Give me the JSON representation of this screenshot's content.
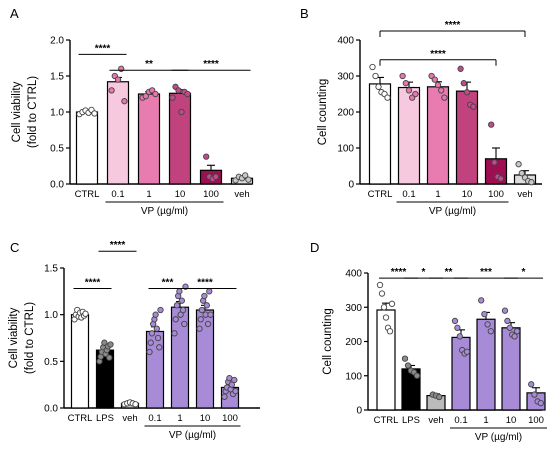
{
  "chart_data": [
    {
      "panel": "A",
      "type": "bar",
      "ylabel": [
        "Cell viability",
        "(fold to CTRL)"
      ],
      "yticks": [
        "0.0",
        "0.5",
        "1.0",
        "1.5",
        "2.0"
      ],
      "ylim": [
        0,
        2.0
      ],
      "categories": [
        "CTRL",
        "0.1",
        "1",
        "10",
        "100",
        "veh"
      ],
      "group_label": "VP (µg/ml)",
      "values": [
        1.0,
        1.42,
        1.25,
        1.26,
        0.19,
        0.08
      ],
      "errors": [
        0.03,
        0.06,
        0.03,
        0.05,
        0.07,
        0.02
      ],
      "points": [
        [
          0.97,
          1.0,
          1.02,
          0.99,
          1.03,
          0.98
        ],
        [
          1.3,
          1.5,
          1.45,
          1.6,
          1.15
        ],
        [
          1.2,
          1.22,
          1.28,
          1.3,
          1.25
        ],
        [
          1.2,
          1.35,
          1.3,
          1.0,
          1.28,
          1.25
        ],
        [
          0.38,
          0.1,
          0.07,
          0.1
        ],
        [
          0.05,
          0.1,
          0.08,
          0.12,
          0.06
        ]
      ],
      "fills": [
        "#ffffff",
        "#f6c9de",
        "#e87cb0",
        "#c0437d",
        "#9e0e52",
        "#dddddd"
      ],
      "dot_fills": [
        "#ffffff",
        "#e877b0",
        "#e877b0",
        "#c14b8b",
        "#c14b8b",
        "#c8c8c8"
      ],
      "significance": [
        {
          "from": 0,
          "to": 1,
          "label": "****",
          "y": 1.8
        },
        {
          "from": 1,
          "to": 3,
          "label": "**",
          "y": 1.58
        },
        {
          "from": 3,
          "to": 5,
          "label": "****",
          "y": 1.58
        }
      ]
    },
    {
      "panel": "B",
      "type": "bar",
      "ylabel": [
        "Cell counting"
      ],
      "yticks": [
        "0",
        "100",
        "200",
        "300",
        "400"
      ],
      "ylim": [
        0,
        400
      ],
      "categories": [
        "CTRL",
        "0.1",
        "1",
        "10",
        "100",
        "veh"
      ],
      "group_label": "VP (µg/ml)",
      "values": [
        278,
        268,
        270,
        258,
        70,
        25
      ],
      "errors": [
        18,
        15,
        14,
        25,
        30,
        12
      ],
      "points": [
        [
          325,
          300,
          270,
          255,
          250,
          240
        ],
        [
          300,
          280,
          260,
          240,
          250
        ],
        [
          300,
          290,
          275,
          260,
          240
        ],
        [
          320,
          280,
          255,
          220,
          215
        ],
        [
          165,
          60,
          20,
          15
        ],
        [
          55,
          30,
          18,
          8,
          5
        ]
      ],
      "fills": [
        "#ffffff",
        "#f6c9de",
        "#e87cb0",
        "#c0437d",
        "#9e0e52",
        "#dddddd"
      ],
      "dot_fills": [
        "#ffffff",
        "#e877b0",
        "#e877b0",
        "#c14b8b",
        "#c14b8b",
        "#c8c8c8"
      ],
      "significance": [
        {
          "from": 0,
          "to": 5,
          "label": "****",
          "y": 425,
          "tick_at": [
            0,
            5
          ]
        },
        {
          "from": 0,
          "to": 4,
          "label": "****",
          "y": 345,
          "tick_at": [
            0,
            4
          ]
        }
      ]
    },
    {
      "panel": "C",
      "type": "bar",
      "ylabel": [
        "Cell viability",
        "(fold to CTRL)"
      ],
      "yticks": [
        "0.0",
        "0.5",
        "1.0",
        "1.5"
      ],
      "ylim": [
        0,
        1.5
      ],
      "categories": [
        "CTRL",
        "LPS",
        "veh",
        "0.1",
        "1",
        "10",
        "100"
      ],
      "group_label": "VP (µg/ml)",
      "group_start": 3,
      "values": [
        1.0,
        0.62,
        0.05,
        0.82,
        1.08,
        1.05,
        0.22
      ],
      "errors": [
        0.02,
        0.03,
        0.01,
        0.05,
        0.06,
        0.05,
        0.03
      ],
      "points": [
        [
          0.95,
          1.0,
          1.05,
          0.98,
          1.02,
          0.97,
          1.03,
          0.99,
          1.01
        ],
        [
          0.5,
          0.55,
          0.6,
          0.65,
          0.7,
          0.58,
          0.62,
          0.66,
          0.54,
          0.68
        ],
        [
          0.04,
          0.05,
          0.06,
          0.05,
          0.04
        ],
        [
          0.6,
          0.7,
          0.8,
          0.9,
          0.95,
          1.0,
          0.85,
          0.75,
          0.65,
          1.05
        ],
        [
          0.8,
          0.95,
          1.1,
          1.2,
          1.25,
          1.0,
          1.15,
          1.05,
          0.9,
          1.3
        ],
        [
          0.85,
          0.95,
          1.05,
          1.15,
          1.2,
          1.0,
          1.1,
          0.9,
          1.25,
          1.0
        ],
        [
          0.12,
          0.18,
          0.22,
          0.28,
          0.32,
          0.2,
          0.25,
          0.15,
          0.3,
          0.18
        ]
      ],
      "fills": [
        "#ffffff",
        "#000000",
        "#cccccc",
        "#a78bd6",
        "#a78bd6",
        "#a78bd6",
        "#a78bd6"
      ],
      "dot_fills": [
        "#ffffff",
        "#8a8a8a",
        "#ffffff",
        "#a78bd6",
        "#a78bd6",
        "#a78bd6",
        "#a78bd6"
      ],
      "significance": [
        {
          "from": 0,
          "to": 1,
          "label": "****",
          "y": 1.28
        },
        {
          "from": 1,
          "to": 2,
          "label": "****",
          "y": 1.68
        },
        {
          "from": 3,
          "to": 4,
          "label": "***",
          "y": 1.28
        },
        {
          "from": 4,
          "to": 6,
          "label": "****",
          "y": 1.28
        }
      ]
    },
    {
      "panel": "D",
      "type": "bar",
      "ylabel": [
        "Cell counting"
      ],
      "yticks": [
        "0",
        "100",
        "200",
        "300",
        "400"
      ],
      "ylim": [
        0,
        400
      ],
      "categories": [
        "CTRL",
        "LPS",
        "veh",
        "0.1",
        "1",
        "10",
        "100"
      ],
      "group_label": "VP (µg/ml)",
      "group_start": 3,
      "values": [
        292,
        120,
        42,
        212,
        265,
        240,
        50
      ],
      "errors": [
        20,
        10,
        5,
        22,
        20,
        15,
        15
      ],
      "points": [
        [
          365,
          340,
          300,
          270,
          240,
          230,
          310
        ],
        [
          150,
          130,
          115,
          110,
          100
        ],
        [
          45,
          42,
          38
        ],
        [
          260,
          240,
          215,
          175,
          165,
          170
        ],
        [
          320,
          280,
          250,
          230
        ],
        [
          290,
          260,
          240,
          220,
          215,
          230
        ],
        [
          75,
          45,
          25,
          20
        ]
      ],
      "fills": [
        "#ffffff",
        "#000000",
        "#bbbbbb",
        "#a78bd6",
        "#a78bd6",
        "#a78bd6",
        "#a78bd6"
      ],
      "dot_fills": [
        "#ffffff",
        "#8a8a8a",
        "#8a8a8a",
        "#a78bd6",
        "#a78bd6",
        "#a78bd6",
        "#a78bd6"
      ],
      "significance": [
        {
          "from": 0,
          "to": 1,
          "label": "****",
          "y": 385
        },
        {
          "from": 1,
          "to": 2,
          "label": "*",
          "y": 385
        },
        {
          "from": 2,
          "to": 3,
          "label": "**",
          "y": 385
        },
        {
          "from": 3,
          "to": 5,
          "label": "***",
          "y": 385
        },
        {
          "from": 5,
          "to": 6,
          "label": "*",
          "y": 385
        }
      ]
    }
  ]
}
